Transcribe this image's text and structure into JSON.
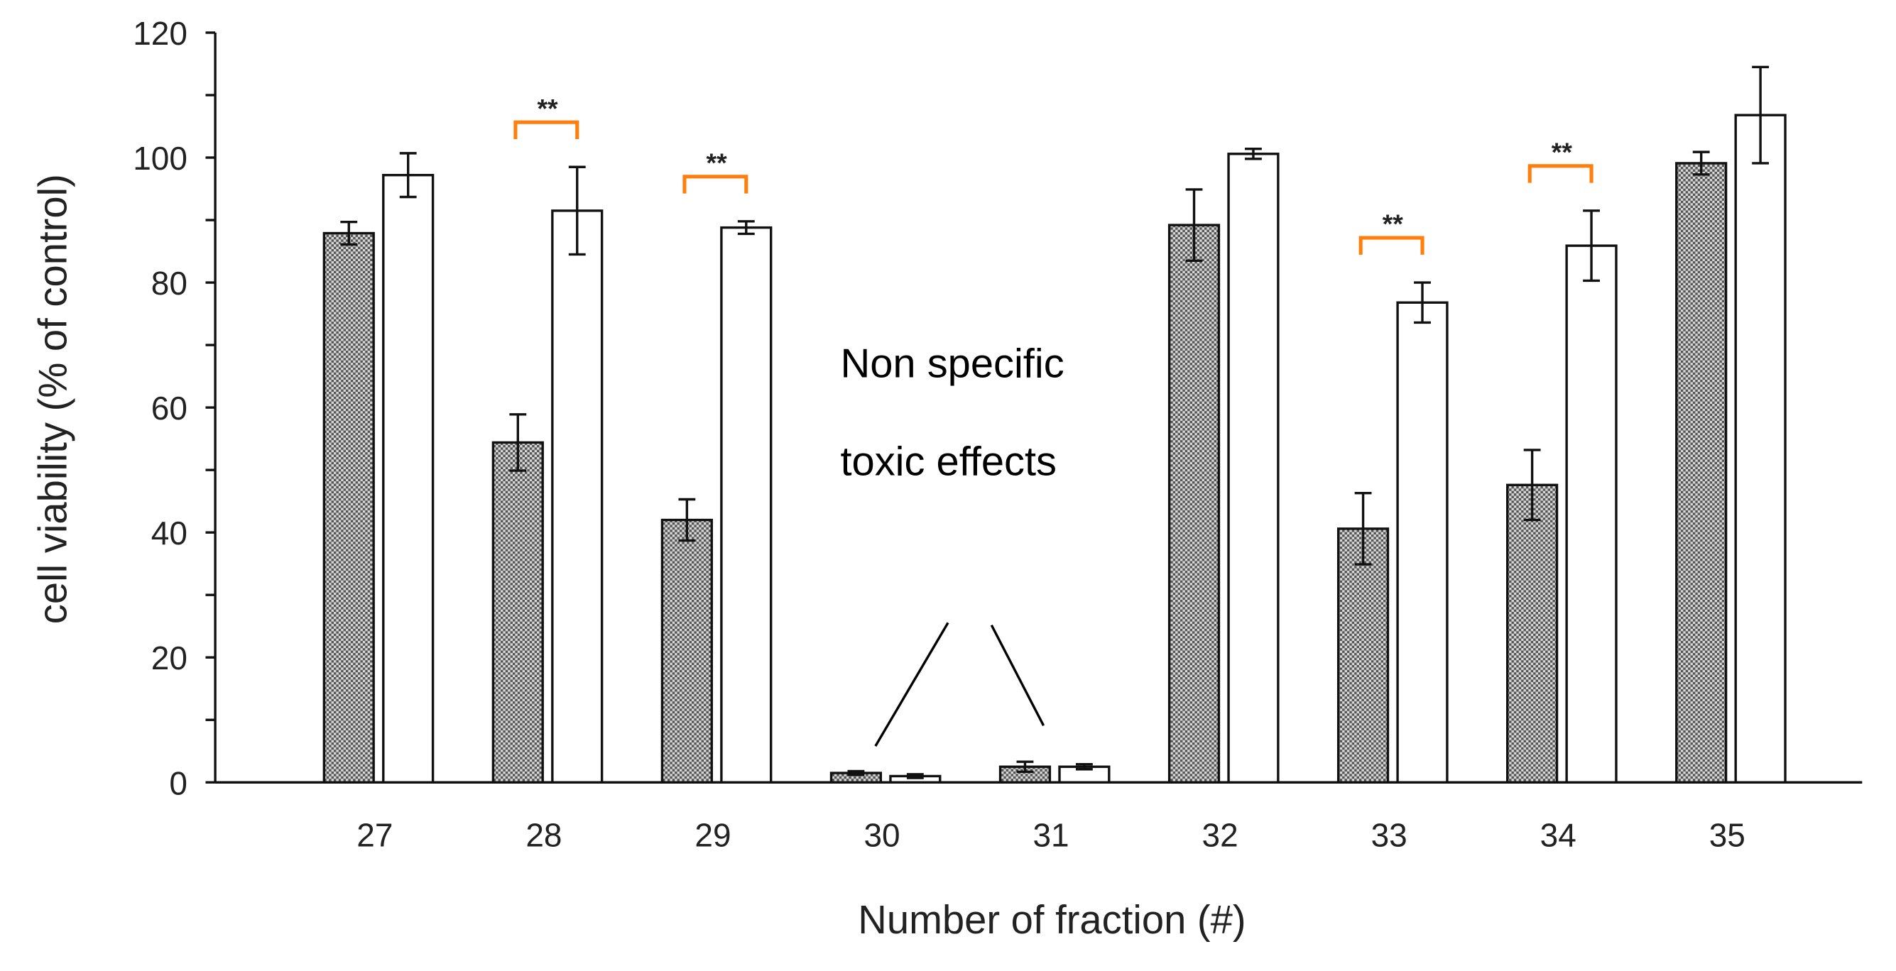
{
  "chart_data": {
    "type": "bar",
    "title": "",
    "xlabel": "Number of fraction (#)",
    "ylabel": "cell viability (% of control)",
    "ylim": [
      0,
      120
    ],
    "yticks": [
      0,
      20,
      40,
      60,
      80,
      100,
      120
    ],
    "minor_tick_step": 10,
    "grid": false,
    "legend": null,
    "categories": [
      "27",
      "28",
      "29",
      "30",
      "31",
      "32",
      "33",
      "34",
      "35"
    ],
    "series": [
      {
        "name": "hatched",
        "fill": "pattern-checker",
        "values": [
          87.9,
          54.4,
          42.0,
          1.5,
          2.5,
          89.2,
          40.6,
          47.6,
          99.1
        ],
        "errors": [
          1.8,
          4.5,
          3.3,
          0.3,
          0.8,
          5.7,
          5.7,
          5.6,
          1.8
        ]
      },
      {
        "name": "open",
        "fill": "#ffffff",
        "values": [
          97.2,
          91.5,
          88.8,
          1.0,
          2.5,
          100.6,
          76.8,
          85.9,
          106.8
        ],
        "errors": [
          3.5,
          7.0,
          1.0,
          0.3,
          0.4,
          0.8,
          3.2,
          5.6,
          7.7
        ]
      }
    ],
    "significance": [
      {
        "category": "28",
        "label": "**"
      },
      {
        "category": "29",
        "label": "**"
      },
      {
        "category": "33",
        "label": "**"
      },
      {
        "category": "34",
        "label": "**"
      }
    ],
    "annotation": {
      "lines": [
        "Non specific",
        "toxic effects"
      ],
      "points_to": [
        "30",
        "31"
      ]
    },
    "colors": {
      "significance_bracket": "#ff7f0e",
      "axis": "#111111",
      "hatch_dark": "#555555"
    }
  }
}
